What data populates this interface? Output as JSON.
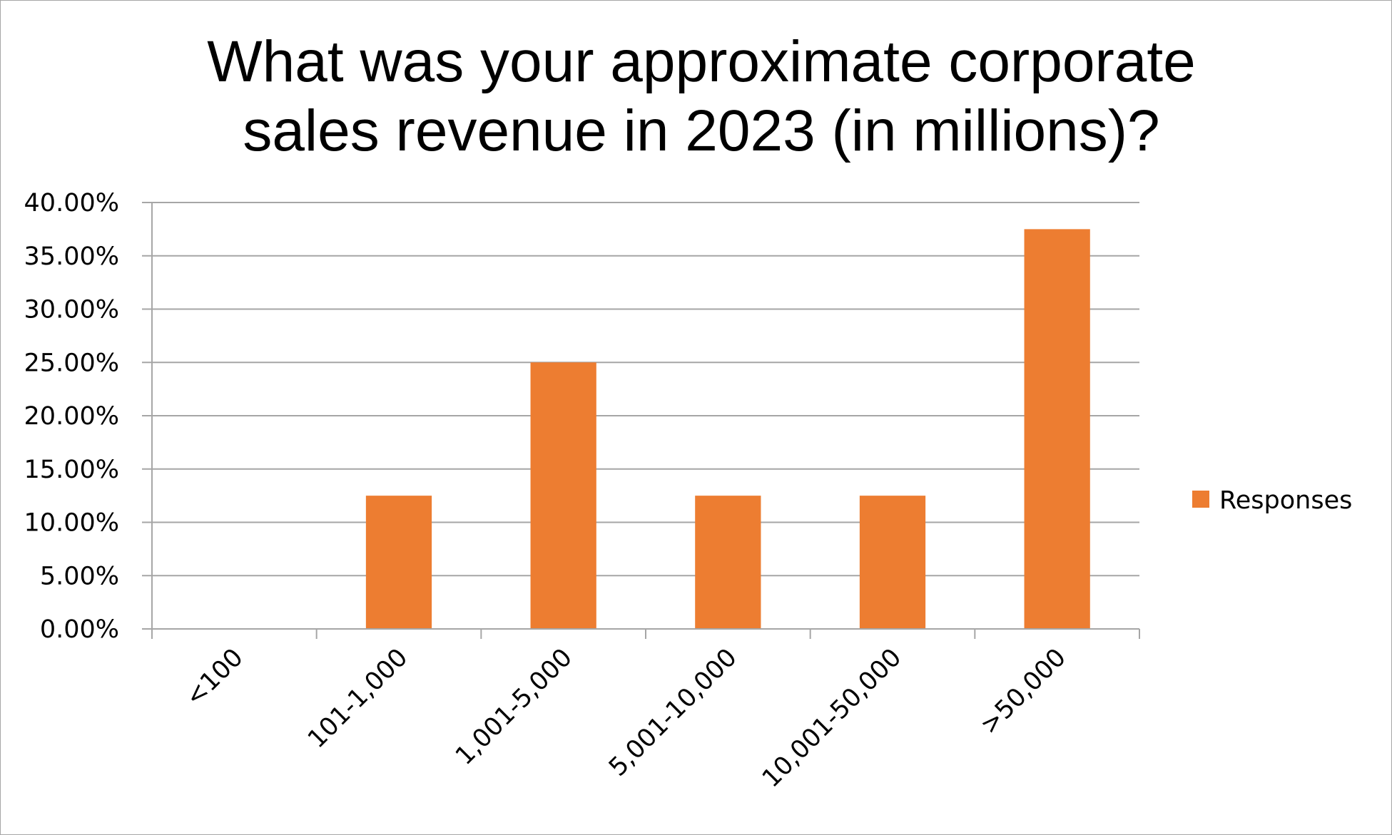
{
  "chart_data": {
    "type": "bar",
    "title": [
      "What was your approximate corporate",
      "sales revenue in 2023 (in millions)?"
    ],
    "categories": [
      "<100",
      "101-1,000",
      "1,001-5,000",
      "5,001-10,000",
      "10,001-50,000",
      ">50,000"
    ],
    "series": [
      {
        "name": "Responses",
        "values": [
          0.0,
          12.5,
          25.0,
          12.5,
          12.5,
          37.5
        ]
      }
    ],
    "y_ticks": [
      "0.00%",
      "5.00%",
      "10.00%",
      "15.00%",
      "20.00%",
      "25.00%",
      "30.00%",
      "35.00%",
      "40.00%"
    ],
    "ylim": [
      0,
      40
    ],
    "y_step": 5,
    "y_unit": "%",
    "grid": true,
    "legend_position": "right",
    "colors": {
      "bar": "#ED7D31",
      "grid": "#A6A6A6",
      "axis": "#A6A6A6",
      "border": "#A6A6A6"
    }
  }
}
